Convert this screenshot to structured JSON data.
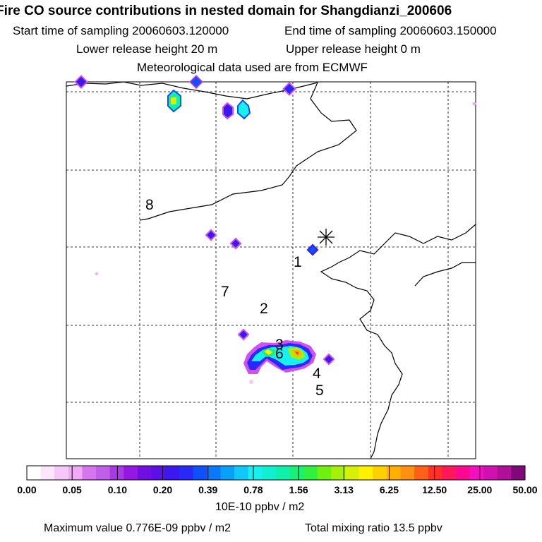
{
  "header": {
    "title": "Fire CO source contributions in nested domain for Shangdianzi_200606",
    "start": "Start time of sampling 20060603.120000",
    "end": "End time of sampling 20060603.150000",
    "lower": "Lower release height   20 m",
    "upper": "Upper release height    0 m",
    "met": "Meteorological data used are from ECMWF"
  },
  "map": {
    "station_marker": "asterisk-icon",
    "labels": [
      "1",
      "2",
      "3",
      "4",
      "5",
      "6",
      "7",
      "8"
    ]
  },
  "colorbar": {
    "ticks": [
      "0.00",
      "0.05",
      "0.10",
      "0.20",
      "0.39",
      "0.78",
      "1.56",
      "3.13",
      "6.25",
      "12.50",
      "25.00",
      "50.00"
    ],
    "colors": [
      "#ffffff",
      "#fce6fc",
      "#f6c8f8",
      "#eeaaf4",
      "#d676ee",
      "#c060e8",
      "#a83ae4",
      "#9418e0",
      "#7010e0",
      "#5a10e6",
      "#3a18ee",
      "#2828f8",
      "#1050f8",
      "#0a78f8",
      "#08a0f8",
      "#10c8f8",
      "#18f0f0",
      "#10f0d0",
      "#10f0a8",
      "#18f078",
      "#30f040",
      "#70f010",
      "#a8f008",
      "#d8f008",
      "#fff000",
      "#ffd000",
      "#ffb000",
      "#ff9010",
      "#ff6018",
      "#ff3028",
      "#ff1858",
      "#ff0890",
      "#f010c0",
      "#d010b0",
      "#b01098",
      "#800878"
    ],
    "units": "10E-10 ppbv / m2"
  },
  "footer": {
    "max_value": "Maximum value  0.776E-09 ppbv / m2",
    "total": "Total mixing ratio       13.5 ppbv"
  }
}
